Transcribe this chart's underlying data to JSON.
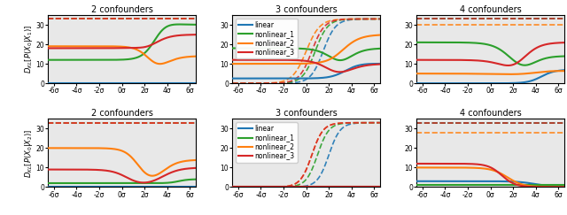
{
  "titles_row1": [
    "2 confounders",
    "3 confounders",
    "4 confounders"
  ],
  "titles_row2": [
    "2 confounders",
    "3 confounders",
    "4 confounders"
  ],
  "ylabel_row1": "$D_{KL}[P(X_0|X_1)]$",
  "ylabel_row2": "$D_{KL}[P(X_0|X_2)]$",
  "colors": [
    "#1f77b4",
    "#2ca02c",
    "#ff7f0e",
    "#d62728"
  ],
  "legend_labels": [
    "linear",
    "nonlinear_1",
    "nonlinear_2",
    "nonlinear_3"
  ],
  "x_ticks": [
    -6,
    -4,
    -2,
    0,
    2,
    4,
    6
  ],
  "x_tick_labels": [
    "-6σ",
    "-4σ",
    "-2σ",
    "0σ",
    "2σ",
    "4σ",
    "6σ"
  ],
  "ylim": [
    0,
    35
  ],
  "xlim": [
    -6.5,
    6.5
  ],
  "bg_color": "#e8e8e8"
}
